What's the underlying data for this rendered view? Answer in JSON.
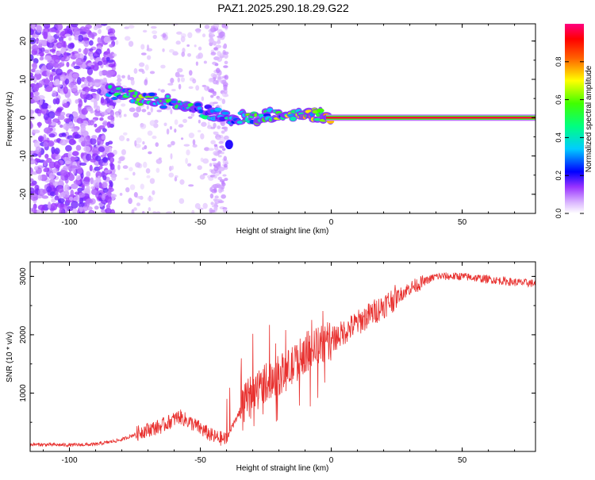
{
  "title": "PAZ1.2025.290.18.29.G22",
  "chart_data": [
    {
      "type": "heatmap",
      "title": "PAZ1.2025.290.18.29.G22",
      "xlabel": "Height of straight line (km)",
      "ylabel": "Frequency (Hz)",
      "xlim": [
        -115,
        78
      ],
      "ylim": [
        -25,
        24.5
      ],
      "xticks": [
        -100,
        -50,
        0,
        50
      ],
      "xtick_labels": [
        "-100",
        "-50",
        "0",
        "50"
      ],
      "yticks": [
        -20,
        -10,
        0,
        10,
        20
      ],
      "ytick_labels": [
        "-20",
        "-10",
        "0",
        "10",
        "20"
      ],
      "colorbar": {
        "label": "Normalized spectral amplitude",
        "range": [
          0,
          1
        ],
        "ticks": [
          0.0,
          0.2,
          0.4,
          0.6,
          0.8
        ],
        "tick_labels": [
          "0.0",
          "0.2",
          "0.4",
          "0.6",
          "0.8"
        ],
        "colormap": [
          "#ffffff",
          "#b066ff",
          "#0000ff",
          "#00e0ff",
          "#00ff00",
          "#ffff00",
          "#ff0000",
          "#ff0080"
        ]
      },
      "trace": {
        "description_points": [
          {
            "x": -83,
            "freq": 6.5,
            "amp": 0.45
          },
          {
            "x": -72,
            "freq": 5.0,
            "amp": 0.55
          },
          {
            "x": -62,
            "freq": 4.0,
            "amp": 0.5
          },
          {
            "x": -55,
            "freq": 2.5,
            "amp": 0.45
          },
          {
            "x": -47,
            "freq": 1.5,
            "amp": 0.45
          },
          {
            "x": -40,
            "freq": 0.0,
            "amp": 0.4
          },
          {
            "x": -30,
            "freq": 0.0,
            "amp": 0.55
          },
          {
            "x": -20,
            "freq": 0.8,
            "amp": 0.6
          },
          {
            "x": -10,
            "freq": 1.0,
            "amp": 0.65
          },
          {
            "x": 0,
            "freq": 0.0,
            "amp": 0.75
          },
          {
            "x": 78,
            "freq": 0.0,
            "amp": 0.95
          }
        ]
      }
    },
    {
      "type": "line",
      "xlabel": "Height of straight line (km)",
      "ylabel": "SNR (10 * v/v)",
      "xlim": [
        -115,
        78
      ],
      "ylim": [
        0,
        3250
      ],
      "xticks": [
        -100,
        -50,
        0,
        50
      ],
      "xtick_labels": [
        "-100",
        "-50",
        "0",
        "50"
      ],
      "yticks": [
        1000,
        2000,
        3000
      ],
      "ytick_labels": [
        "1000",
        "2000",
        "3000"
      ],
      "color": "#e8312f",
      "series": [
        {
          "name": "SNR",
          "x": [
            -115,
            -100,
            -90,
            -80,
            -72,
            -65,
            -58,
            -52,
            -45,
            -40,
            -37,
            -32,
            -25,
            -20,
            -15,
            -10,
            -5,
            0,
            10,
            20,
            30,
            40,
            50,
            60,
            70,
            78
          ],
          "values": [
            120,
            110,
            120,
            200,
            350,
            430,
            600,
            450,
            250,
            200,
            500,
            900,
            1200,
            1300,
            1450,
            1700,
            1800,
            1900,
            2200,
            2500,
            2800,
            3000,
            3000,
            2950,
            2900,
            2880
          ]
        }
      ]
    }
  ]
}
